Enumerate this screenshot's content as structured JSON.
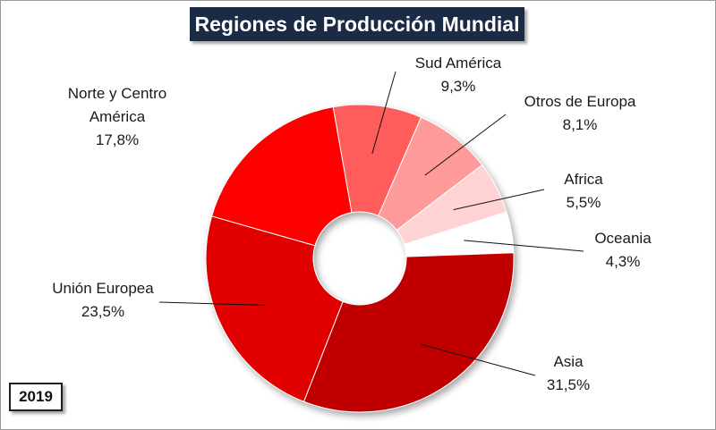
{
  "chart_data": {
    "type": "pie",
    "title": "Regiones de Producción Mundial",
    "badge": "2019",
    "slices": [
      {
        "label": "Sud América",
        "value_label": "9,3%",
        "value": 9.3,
        "color": "#ff5c5c"
      },
      {
        "label": "Otros de Europa",
        "value_label": "8,1%",
        "value": 8.1,
        "color": "#ff9a9a"
      },
      {
        "label": "Africa",
        "value_label": "5,5%",
        "value": 5.5,
        "color": "#ffd3d3"
      },
      {
        "label": "Oceania",
        "value_label": "4,3%",
        "value": 4.3,
        "color": "#ffffff"
      },
      {
        "label": "Asia",
        "value_label": "31,5%",
        "value": 31.5,
        "color": "#c00000"
      },
      {
        "label": "Unión Europea",
        "value_label": "23,5%",
        "value": 23.5,
        "color": "#e00000"
      },
      {
        "label": "Norte y Centro América",
        "value_label": "17,8%",
        "value": 17.8,
        "color": "#ff0000"
      }
    ],
    "label_lines": [
      [
        "Sud América",
        "9,3%"
      ],
      [
        "Otros de Europa",
        "8,1%"
      ],
      [
        "Africa",
        "5,5%"
      ],
      [
        "Oceania",
        "4,3%"
      ],
      [
        "Asia",
        "31,5%"
      ],
      [
        "Unión Europea",
        "23,5%"
      ],
      [
        "Norte y Centro",
        "América",
        "17,8%"
      ]
    ]
  }
}
